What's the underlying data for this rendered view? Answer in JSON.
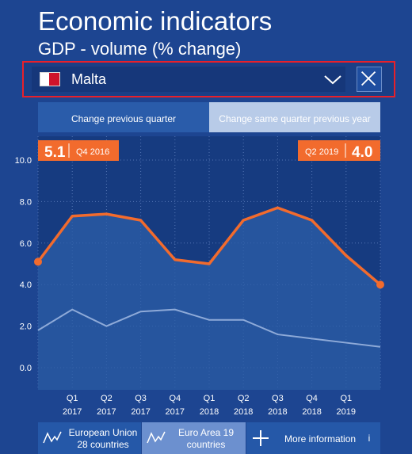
{
  "header": {
    "title": "Economic indicators",
    "subtitle": "GDP - volume (% change)"
  },
  "country_select": {
    "selected": "Malta",
    "flag_icon": "malta-flag-icon"
  },
  "tabs": {
    "prev_label": "Change previous quarter",
    "same_label": "Change same quarter previous year",
    "active": "same"
  },
  "callouts": {
    "start": {
      "value": "5.1",
      "period": "Q4 2016"
    },
    "end": {
      "value": "4.0",
      "period": "Q2 2019"
    }
  },
  "buttons": {
    "eu_line1": "European Union",
    "eu_line2": "28 countries",
    "ea_line1": "Euro Area 19",
    "ea_line2": "countries",
    "more_label": "More information",
    "info_label": "i"
  },
  "colors": {
    "background": "#1d4591",
    "malta_line": "#f26b2d",
    "area_fill": "#2c5fa8",
    "comparison_line": "#8eaad8"
  },
  "chart_data": {
    "type": "area",
    "x": [
      "Q4 2016",
      "Q1 2017",
      "Q2 2017",
      "Q3 2017",
      "Q4 2017",
      "Q1 2018",
      "Q2 2018",
      "Q3 2018",
      "Q4 2018",
      "Q1 2019",
      "Q2 2019"
    ],
    "tick_labels": [
      {
        "q": "Q1",
        "y": "2017"
      },
      {
        "q": "Q2",
        "y": "2017"
      },
      {
        "q": "Q3",
        "y": "2017"
      },
      {
        "q": "Q4",
        "y": "2017"
      },
      {
        "q": "Q1",
        "y": "2018"
      },
      {
        "q": "Q2",
        "y": "2018"
      },
      {
        "q": "Q3",
        "y": "2018"
      },
      {
        "q": "Q4",
        "y": "2018"
      },
      {
        "q": "Q1",
        "y": "2019"
      }
    ],
    "yticks": [
      "10.0",
      "8.0",
      "6.0",
      "4.0",
      "2.0",
      "0.0"
    ],
    "ylim": [
      0,
      10
    ],
    "grid": true,
    "series": [
      {
        "values": [
          5.1,
          7.3,
          7.4,
          7.1,
          5.2,
          5.0,
          7.1,
          7.7,
          7.1,
          5.4,
          4.0
        ]
      },
      {
        "values": [
          1.8,
          2.8,
          2.0,
          2.7,
          2.8,
          2.3,
          2.3,
          1.6,
          1.4,
          1.2,
          1.0
        ]
      }
    ]
  }
}
